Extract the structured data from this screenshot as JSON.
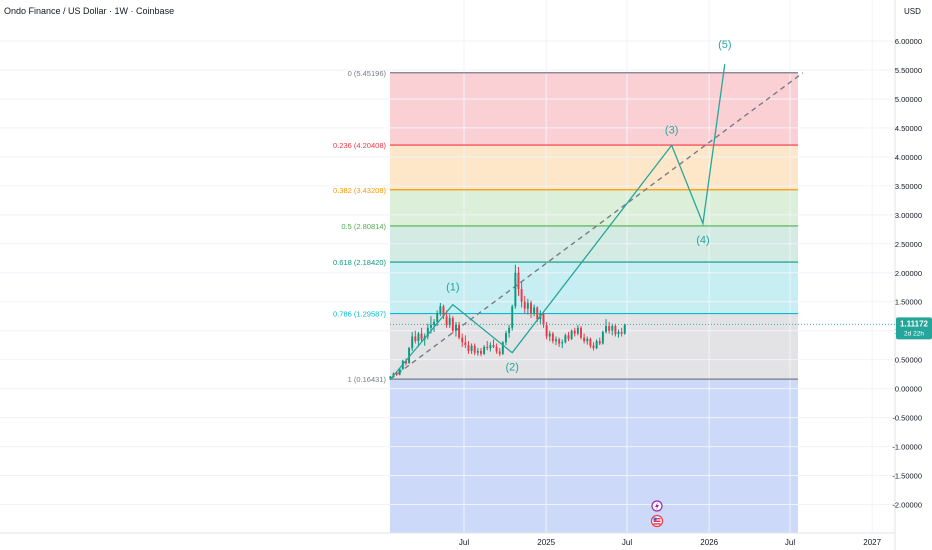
{
  "header": {
    "title": "Ondo Finance / US Dollar · 1W · Coinbase",
    "currency": "USD"
  },
  "price_tag": {
    "price": "1.11172",
    "countdown": "2d 22h"
  },
  "colors": {
    "up": "#089981",
    "down": "#f23645",
    "wave": "#26a69a",
    "tag_bg": "#26a69a",
    "level_0": "#787b86",
    "level_0236": "#f23645",
    "level_0382": "#ff9800",
    "level_05": "#4caf50",
    "level_0618": "#089981",
    "level_0786": "#00bcd4",
    "level_1": "#787b86",
    "zone_0_0236": "#fbd0d5",
    "zone_0236_0382": "#fde7c8",
    "zone_0382_05": "#dcefd9",
    "zone_05_0618": "#d3ebe2",
    "zone_0618_0786": "#c7eef2",
    "zone_0786_1": "#e3e3e6",
    "zone_below_1": "#ccd9f8"
  },
  "chart_data": {
    "type": "candlestick",
    "title": "Ondo Finance / US Dollar · 1W · Coinbase",
    "ylabel": "USD",
    "ylim": [
      -2.45,
      6.55
    ],
    "y_ticks": [
      "6.00000",
      "5.50000",
      "5.00000",
      "4.50000",
      "4.00000",
      "3.50000",
      "3.00000",
      "2.50000",
      "2.00000",
      "1.50000",
      "1.00000",
      "0.50000",
      "0.00000",
      "-0.50000",
      "-1.00000",
      "-1.50000",
      "-2.00000"
    ],
    "x_ticks": [
      {
        "label": "Jul",
        "x": "2024-07"
      },
      {
        "label": "2025",
        "x": "2025-01"
      },
      {
        "label": "Jul",
        "x": "2025-07"
      },
      {
        "label": "2026",
        "x": "2026-01"
      },
      {
        "label": "Jul",
        "x": "2026-07"
      },
      {
        "label": "2027",
        "x": "2027-01"
      }
    ],
    "fib_levels": [
      {
        "ratio": "0",
        "price": 5.45196,
        "label": "0 (5.45196)"
      },
      {
        "ratio": "0.236",
        "price": 4.20408,
        "label": "0.236 (4.20408)"
      },
      {
        "ratio": "0.382",
        "price": 3.43208,
        "label": "0.382 (3.43208)"
      },
      {
        "ratio": "0.5",
        "price": 2.80814,
        "label": "0.5 (2.80814)"
      },
      {
        "ratio": "0.618",
        "price": 2.1842,
        "label": "0.618 (2.18420)"
      },
      {
        "ratio": "0.786",
        "price": 1.29587,
        "label": "0.786 (1.29587)"
      },
      {
        "ratio": "1",
        "price": 0.16431,
        "label": "1 (0.16431)"
      }
    ],
    "trendline": [
      {
        "date": "2024-01-18",
        "price": 0.16431
      },
      {
        "date": "2026-07-30",
        "price": 5.45196
      }
    ],
    "wave_points": [
      {
        "label": "",
        "date": "2024-01-18",
        "price": 0.16
      },
      {
        "label": "(1)",
        "date": "2024-06-06",
        "price": 1.45
      },
      {
        "label": "(2)",
        "date": "2024-10-17",
        "price": 0.62
      },
      {
        "label": "(3)",
        "date": "2025-10-09",
        "price": 4.2
      },
      {
        "label": "(4)",
        "date": "2025-12-18",
        "price": 2.85
      },
      {
        "label": "(5)",
        "date": "2026-02-05",
        "price": 5.6
      }
    ],
    "weeks_start": "2024-01-18",
    "candles": [
      {
        "o": 0.17,
        "h": 0.22,
        "l": 0.15,
        "c": 0.21
      },
      {
        "o": 0.21,
        "h": 0.28,
        "l": 0.19,
        "c": 0.26
      },
      {
        "o": 0.26,
        "h": 0.3,
        "l": 0.22,
        "c": 0.24
      },
      {
        "o": 0.24,
        "h": 0.36,
        "l": 0.23,
        "c": 0.34
      },
      {
        "o": 0.34,
        "h": 0.5,
        "l": 0.32,
        "c": 0.48
      },
      {
        "o": 0.48,
        "h": 0.52,
        "l": 0.4,
        "c": 0.44
      },
      {
        "o": 0.44,
        "h": 0.72,
        "l": 0.43,
        "c": 0.7
      },
      {
        "o": 0.7,
        "h": 0.98,
        "l": 0.65,
        "c": 0.9
      },
      {
        "o": 0.9,
        "h": 1.0,
        "l": 0.78,
        "c": 0.82
      },
      {
        "o": 0.82,
        "h": 0.98,
        "l": 0.72,
        "c": 0.95
      },
      {
        "o": 0.95,
        "h": 1.05,
        "l": 0.8,
        "c": 0.85
      },
      {
        "o": 0.85,
        "h": 0.95,
        "l": 0.74,
        "c": 0.9
      },
      {
        "o": 0.9,
        "h": 1.12,
        "l": 0.85,
        "c": 1.05
      },
      {
        "o": 1.05,
        "h": 1.25,
        "l": 0.95,
        "c": 1.1
      },
      {
        "o": 1.1,
        "h": 1.2,
        "l": 0.98,
        "c": 1.15
      },
      {
        "o": 1.15,
        "h": 1.35,
        "l": 1.08,
        "c": 1.3
      },
      {
        "o": 1.3,
        "h": 1.48,
        "l": 1.25,
        "c": 1.42
      },
      {
        "o": 1.42,
        "h": 1.45,
        "l": 1.2,
        "c": 1.25
      },
      {
        "o": 1.25,
        "h": 1.35,
        "l": 1.05,
        "c": 1.1
      },
      {
        "o": 1.1,
        "h": 1.28,
        "l": 1.05,
        "c": 1.22
      },
      {
        "o": 1.22,
        "h": 1.25,
        "l": 0.95,
        "c": 1.0
      },
      {
        "o": 1.0,
        "h": 1.15,
        "l": 0.9,
        "c": 1.1
      },
      {
        "o": 1.1,
        "h": 1.15,
        "l": 0.85,
        "c": 0.88
      },
      {
        "o": 0.88,
        "h": 0.95,
        "l": 0.72,
        "c": 0.8
      },
      {
        "o": 0.8,
        "h": 0.92,
        "l": 0.7,
        "c": 0.75
      },
      {
        "o": 0.75,
        "h": 0.82,
        "l": 0.6,
        "c": 0.65
      },
      {
        "o": 0.65,
        "h": 0.78,
        "l": 0.6,
        "c": 0.74
      },
      {
        "o": 0.74,
        "h": 0.78,
        "l": 0.58,
        "c": 0.62
      },
      {
        "o": 0.62,
        "h": 0.7,
        "l": 0.57,
        "c": 0.65
      },
      {
        "o": 0.65,
        "h": 0.7,
        "l": 0.56,
        "c": 0.6
      },
      {
        "o": 0.6,
        "h": 0.75,
        "l": 0.58,
        "c": 0.72
      },
      {
        "o": 0.72,
        "h": 0.82,
        "l": 0.66,
        "c": 0.7
      },
      {
        "o": 0.7,
        "h": 0.8,
        "l": 0.64,
        "c": 0.75
      },
      {
        "o": 0.75,
        "h": 0.85,
        "l": 0.7,
        "c": 0.72
      },
      {
        "o": 0.72,
        "h": 0.78,
        "l": 0.6,
        "c": 0.64
      },
      {
        "o": 0.64,
        "h": 0.7,
        "l": 0.56,
        "c": 0.6
      },
      {
        "o": 0.6,
        "h": 0.82,
        "l": 0.58,
        "c": 0.8
      },
      {
        "o": 0.8,
        "h": 1.0,
        "l": 0.75,
        "c": 0.96
      },
      {
        "o": 0.96,
        "h": 1.1,
        "l": 0.88,
        "c": 1.05
      },
      {
        "o": 1.05,
        "h": 1.45,
        "l": 1.0,
        "c": 1.42
      },
      {
        "o": 1.42,
        "h": 2.14,
        "l": 1.38,
        "c": 2.0
      },
      {
        "o": 2.0,
        "h": 2.1,
        "l": 1.6,
        "c": 1.72
      },
      {
        "o": 1.72,
        "h": 1.85,
        "l": 1.4,
        "c": 1.5
      },
      {
        "o": 1.5,
        "h": 1.6,
        "l": 1.3,
        "c": 1.38
      },
      {
        "o": 1.38,
        "h": 1.55,
        "l": 1.28,
        "c": 1.48
      },
      {
        "o": 1.48,
        "h": 1.52,
        "l": 1.22,
        "c": 1.3
      },
      {
        "o": 1.3,
        "h": 1.45,
        "l": 1.25,
        "c": 1.4
      },
      {
        "o": 1.4,
        "h": 1.42,
        "l": 1.15,
        "c": 1.2
      },
      {
        "o": 1.2,
        "h": 1.35,
        "l": 1.12,
        "c": 1.3
      },
      {
        "o": 1.3,
        "h": 1.32,
        "l": 1.05,
        "c": 1.1
      },
      {
        "o": 1.1,
        "h": 1.15,
        "l": 0.85,
        "c": 0.9
      },
      {
        "o": 0.9,
        "h": 1.0,
        "l": 0.82,
        "c": 0.95
      },
      {
        "o": 0.95,
        "h": 0.98,
        "l": 0.78,
        "c": 0.82
      },
      {
        "o": 0.82,
        "h": 0.9,
        "l": 0.75,
        "c": 0.85
      },
      {
        "o": 0.85,
        "h": 0.88,
        "l": 0.72,
        "c": 0.78
      },
      {
        "o": 0.78,
        "h": 0.85,
        "l": 0.7,
        "c": 0.8
      },
      {
        "o": 0.8,
        "h": 0.95,
        "l": 0.78,
        "c": 0.92
      },
      {
        "o": 0.92,
        "h": 0.98,
        "l": 0.82,
        "c": 0.86
      },
      {
        "o": 0.86,
        "h": 1.02,
        "l": 0.84,
        "c": 1.0
      },
      {
        "o": 1.0,
        "h": 1.05,
        "l": 0.9,
        "c": 0.95
      },
      {
        "o": 0.95,
        "h": 1.1,
        "l": 0.92,
        "c": 1.05
      },
      {
        "o": 1.05,
        "h": 1.08,
        "l": 0.85,
        "c": 0.88
      },
      {
        "o": 0.88,
        "h": 0.95,
        "l": 0.78,
        "c": 0.82
      },
      {
        "o": 0.82,
        "h": 0.9,
        "l": 0.76,
        "c": 0.86
      },
      {
        "o": 0.86,
        "h": 0.88,
        "l": 0.7,
        "c": 0.74
      },
      {
        "o": 0.74,
        "h": 0.8,
        "l": 0.66,
        "c": 0.7
      },
      {
        "o": 0.7,
        "h": 0.85,
        "l": 0.68,
        "c": 0.82
      },
      {
        "o": 0.82,
        "h": 0.88,
        "l": 0.75,
        "c": 0.78
      },
      {
        "o": 0.78,
        "h": 1.0,
        "l": 0.76,
        "c": 0.98
      },
      {
        "o": 0.98,
        "h": 1.2,
        "l": 0.95,
        "c": 1.08
      },
      {
        "o": 1.08,
        "h": 1.15,
        "l": 0.95,
        "c": 1.0
      },
      {
        "o": 1.0,
        "h": 1.12,
        "l": 0.92,
        "c": 1.08
      },
      {
        "o": 1.08,
        "h": 1.12,
        "l": 0.9,
        "c": 0.94
      },
      {
        "o": 0.94,
        "h": 1.02,
        "l": 0.88,
        "c": 0.98
      },
      {
        "o": 0.98,
        "h": 1.05,
        "l": 0.9,
        "c": 0.95
      },
      {
        "o": 0.95,
        "h": 1.12,
        "l": 0.93,
        "c": 1.11
      }
    ]
  }
}
